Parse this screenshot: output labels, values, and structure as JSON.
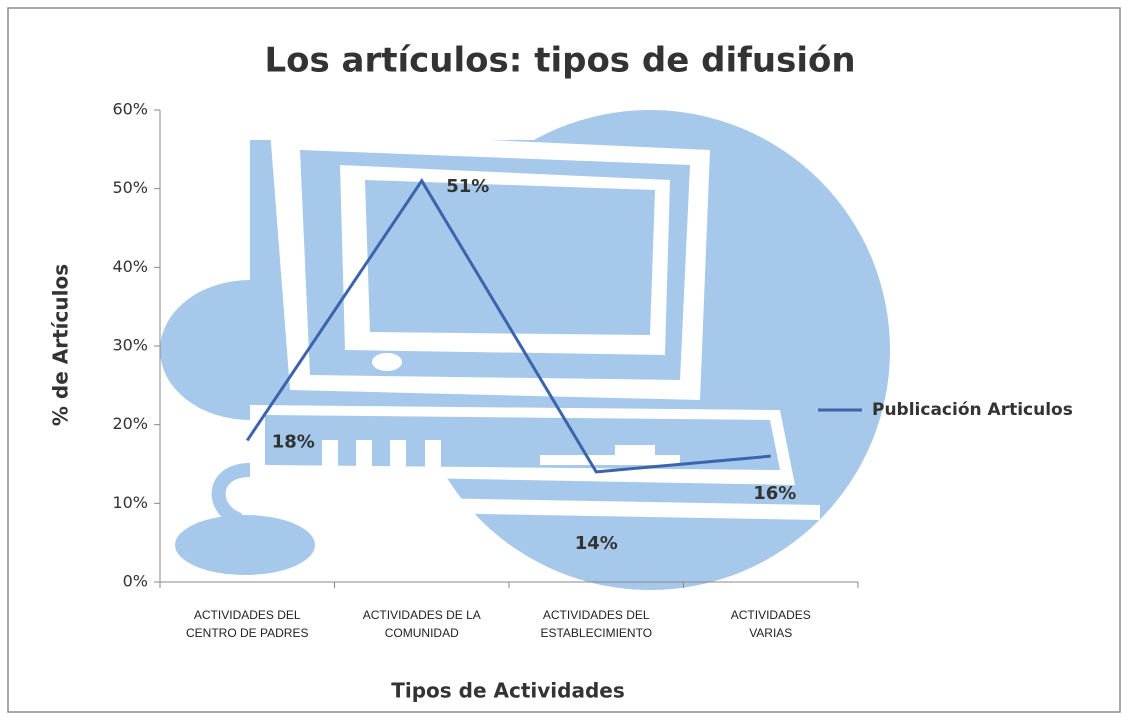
{
  "chart_data": {
    "type": "line",
    "title": "Los artículos: tipos de difusión",
    "x_label": "Tipos de Actividades",
    "y_label": "% de Artículos",
    "categories": [
      "ACTIVIDADES DEL CENTRO DE PADRES",
      "ACTIVIDADES DE LA COMUNIDAD",
      "ACTIVIDADES DEL ESTABLECIMIENTO",
      "ACTIVIDADES VARIAS"
    ],
    "series": [
      {
        "name": "Publicación Articulos",
        "color": "#3b64ad",
        "values": [
          18,
          51,
          14,
          16
        ],
        "value_labels": [
          "18%",
          "51%",
          "14%",
          "16%"
        ]
      }
    ],
    "ylim": [
      0,
      60
    ],
    "yticks": [
      {
        "value": 0,
        "label": "0%"
      },
      {
        "value": 10,
        "label": "10%"
      },
      {
        "value": 20,
        "label": "20%"
      },
      {
        "value": 30,
        "label": "30%"
      },
      {
        "value": 40,
        "label": "40%"
      },
      {
        "value": 50,
        "label": "50%"
      },
      {
        "value": 60,
        "label": "60%"
      }
    ],
    "legend": "right"
  }
}
